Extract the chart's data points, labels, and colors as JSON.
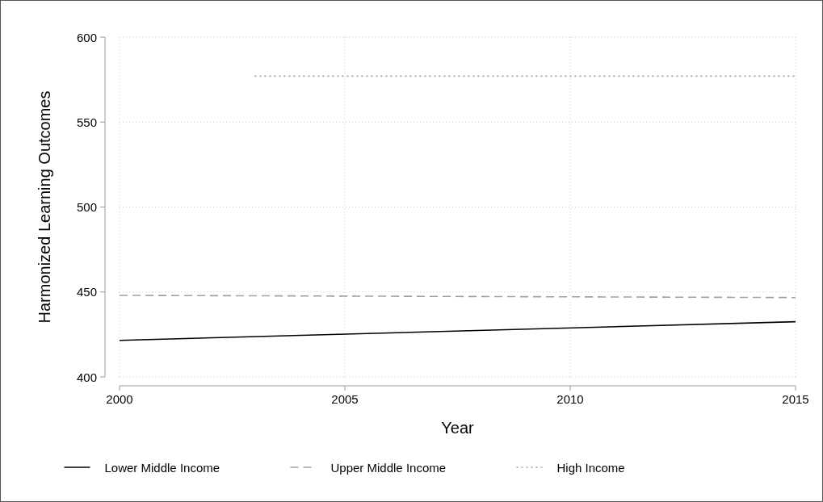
{
  "chart_data": {
    "type": "line",
    "xlabel": "Year",
    "ylabel": "Harmonized Learning Outcomes",
    "xlim": [
      2000,
      2015
    ],
    "xticks": [
      2000,
      2005,
      2010,
      2015
    ],
    "ylim": [
      400,
      600
    ],
    "yticks": [
      400,
      450,
      500,
      550,
      600
    ],
    "grid": true,
    "legend": "bottom",
    "series": [
      {
        "name": "Lower Middle Income",
        "color": "#000000",
        "line_style": "solid",
        "x": [
          2000,
          2015
        ],
        "values": [
          421.5,
          432.5
        ]
      },
      {
        "name": "Upper Middle Income",
        "color": "#a0a0a0",
        "line_style": "dashed",
        "x": [
          2000,
          2015
        ],
        "values": [
          448,
          446.7
        ]
      },
      {
        "name": "High Income",
        "color": "#a0a0a0",
        "line_style": "dotted",
        "x": [
          2003,
          2015
        ],
        "values": [
          577,
          577
        ]
      }
    ]
  }
}
